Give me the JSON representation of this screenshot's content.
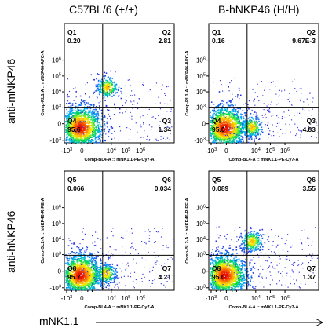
{
  "columns": [
    "C57BL/6 (+/+)",
    "B-hNKP46 (H/H)"
  ],
  "rows": [
    "anti-mNKP46",
    "anti-hNKP46"
  ],
  "x_axis_label": "mNK1.1",
  "chart_data": [
    {
      "type": "scatter",
      "title": "C57BL/6 (+/+)",
      "xlabel": "Comp-BL4-A :: mNK1.1-PE-Cy7-A",
      "ylabel": "Comp-RL1-A :: mNKP46-APC-A",
      "x_ticks": [
        "-10^3",
        "0",
        "10^4",
        "10^5",
        "10^6"
      ],
      "y_ticks": [
        "-10^3",
        "0",
        "10^3",
        "10^4",
        "10^5",
        "10^6"
      ],
      "quadrants": [
        {
          "id": "Q1",
          "value": "0.20"
        },
        {
          "id": "Q2",
          "value": "2.81"
        },
        {
          "id": "Q3",
          "value": "1.34"
        },
        {
          "id": "Q4",
          "value": "95.6"
        }
      ],
      "populations": [
        {
          "x": -50,
          "y": -80,
          "kind": "main"
        },
        {
          "x": 5000,
          "y": 20000,
          "kind": "dp"
        }
      ]
    },
    {
      "type": "scatter",
      "title": "B-hNKP46 (H/H)",
      "xlabel": "Comp-BL4-A :: mNK1.1-PE-Cy7-A",
      "ylabel": "Comp-RL1-A :: mNKP46-APC-A",
      "x_ticks": [
        "-10^3",
        "0",
        "10^4",
        "10^5",
        "10^6"
      ],
      "y_ticks": [
        "-10^3",
        "0",
        "10^3",
        "10^4",
        "10^5",
        "10^6"
      ],
      "quadrants": [
        {
          "id": "Q1",
          "value": "0.16"
        },
        {
          "id": "Q2",
          "value": "9.67E-3"
        },
        {
          "id": "Q3",
          "value": "4.83"
        },
        {
          "id": "Q4",
          "value": "95.0"
        }
      ],
      "populations": [
        {
          "x": -50,
          "y": -80,
          "kind": "main"
        },
        {
          "x": 5000,
          "y": -50,
          "kind": "sp"
        }
      ]
    },
    {
      "type": "scatter",
      "title": "C57BL/6 (+/+)",
      "xlabel": "Comp-BL4-A :: mNK1.1-PE-Cy7-A",
      "ylabel": "Comp-BL2-A :: hNKP46-R-PE-A",
      "x_ticks": [
        "-10^3",
        "0",
        "10^4",
        "10^5",
        "10^6"
      ],
      "y_ticks": [
        "-10^3",
        "0",
        "10^3",
        "10^4",
        "10^5",
        "10^6"
      ],
      "quadrants": [
        {
          "id": "Q5",
          "value": "0.066"
        },
        {
          "id": "Q6",
          "value": "0.034"
        },
        {
          "id": "Q7",
          "value": "4.21"
        },
        {
          "id": "Q8",
          "value": "95.7"
        }
      ],
      "populations": [
        {
          "x": -50,
          "y": -80,
          "kind": "main"
        },
        {
          "x": 4000,
          "y": -30,
          "kind": "sp"
        }
      ]
    },
    {
      "type": "scatter",
      "title": "B-hNKP46 (H/H)",
      "xlabel": "Comp-BL4-A :: mNK1.1-PE-Cy7-A",
      "ylabel": "Comp-BL2-A :: hNKP46-R-PE-A",
      "x_ticks": [
        "-10^3",
        "0",
        "10^4",
        "10^5",
        "10^6"
      ],
      "y_ticks": [
        "-10^3",
        "0",
        "10^3",
        "10^4",
        "10^5",
        "10^6"
      ],
      "quadrants": [
        {
          "id": "Q5",
          "value": "0.089"
        },
        {
          "id": "Q6",
          "value": "3.55"
        },
        {
          "id": "Q7",
          "value": "1.37"
        },
        {
          "id": "Q8",
          "value": "95.0"
        }
      ],
      "populations": [
        {
          "x": -50,
          "y": -80,
          "kind": "main"
        },
        {
          "x": 5000,
          "y": 8000,
          "kind": "dp"
        }
      ]
    }
  ]
}
